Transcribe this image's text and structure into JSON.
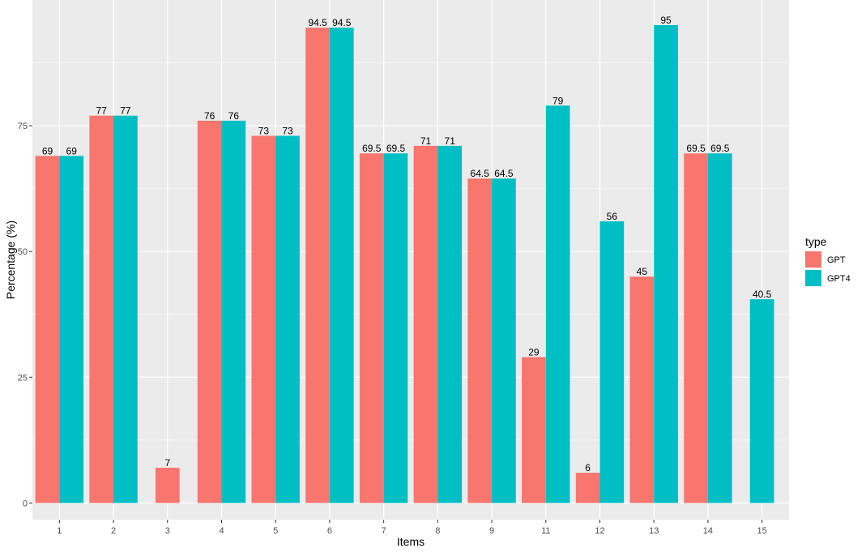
{
  "chart_data": {
    "type": "bar",
    "title": "",
    "xlabel": "Items",
    "ylabel": "Percentage (%)",
    "categories": [
      "1",
      "2",
      "3",
      "4",
      "5",
      "6",
      "7",
      "8",
      "9",
      "11",
      "12",
      "13",
      "14",
      "15"
    ],
    "series": [
      {
        "name": "GPT",
        "color": "#F8766D",
        "values": [
          69,
          77,
          7,
          76,
          73,
          94.5,
          69.5,
          71,
          64.5,
          29,
          6,
          45,
          69.5,
          null
        ]
      },
      {
        "name": "GPT4",
        "color": "#00BFC4",
        "values": [
          69,
          77,
          null,
          76,
          73,
          94.5,
          69.5,
          71,
          64.5,
          79,
          56,
          95,
          69.5,
          40.5
        ]
      }
    ],
    "ylim": [
      0,
      100
    ],
    "yticks": [
      0,
      25,
      50,
      75
    ],
    "grid": true,
    "legend": {
      "title": "type",
      "position": "right"
    },
    "panel_background": "#EBEBEB"
  }
}
